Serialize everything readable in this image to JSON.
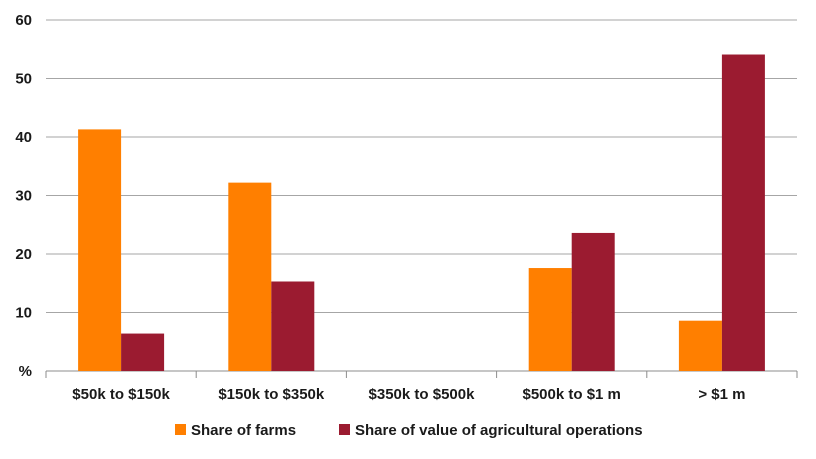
{
  "chart_data": {
    "type": "bar",
    "categories": [
      "$50k to $150k",
      "$150k to $350k",
      "$350k to $500k",
      "$500k to $1 m",
      "> $1 m"
    ],
    "series": [
      {
        "name": "Share of farms",
        "color": "#FF7F00",
        "values": [
          41.3,
          32.2,
          null,
          17.6,
          8.6
        ]
      },
      {
        "name": "Share of value of agricultural operations",
        "color": "#9B1B30",
        "values": [
          6.4,
          15.3,
          null,
          23.6,
          54.1
        ]
      }
    ],
    "ylim": [
      0,
      60
    ],
    "yticks": [
      "%",
      "10",
      "20",
      "30",
      "40",
      "50",
      "60"
    ],
    "grid": true,
    "legend": "bottom"
  }
}
